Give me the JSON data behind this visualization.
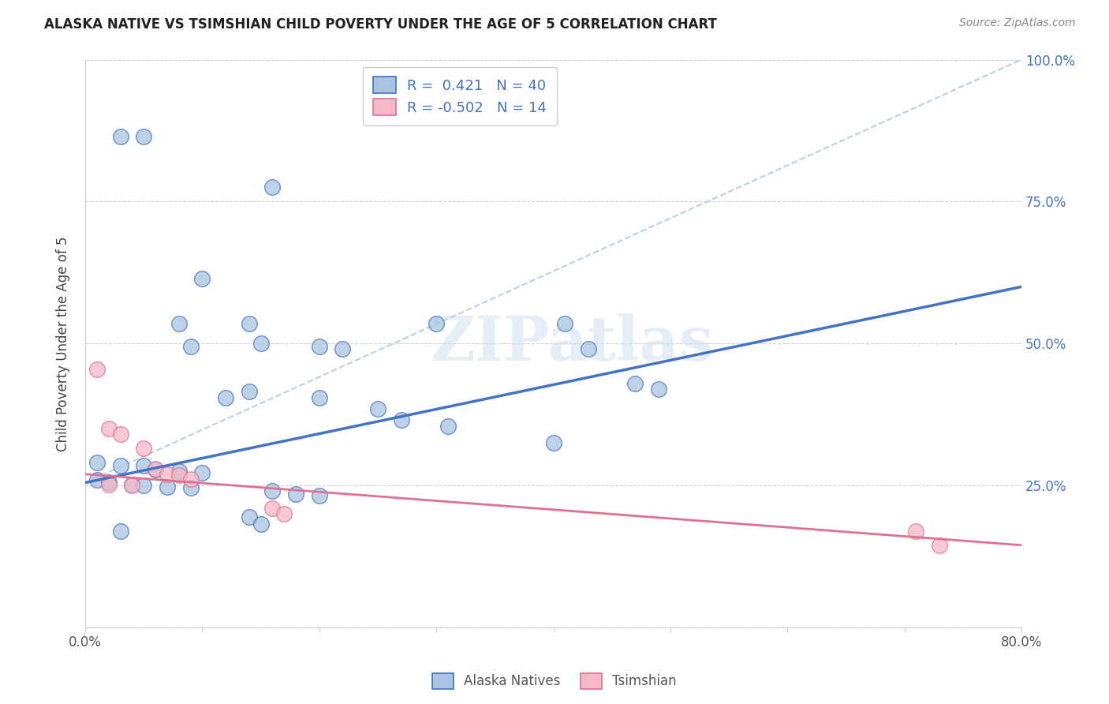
{
  "title": "ALASKA NATIVE VS TSIMSHIAN CHILD POVERTY UNDER THE AGE OF 5 CORRELATION CHART",
  "source": "Source: ZipAtlas.com",
  "ylabel": "Child Poverty Under the Age of 5",
  "xlim": [
    0.0,
    0.8
  ],
  "ylim": [
    0.0,
    1.0
  ],
  "ytick_positions": [
    0.0,
    0.25,
    0.5,
    0.75,
    1.0
  ],
  "yticklabels_right": [
    "",
    "25.0%",
    "50.0%",
    "75.0%",
    "100.0%"
  ],
  "alaska_R": 0.421,
  "alaska_N": 40,
  "tsimshian_R": -0.502,
  "tsimshian_N": 14,
  "alaska_color": "#a8c4e0",
  "alaska_line_color": "#4472c4",
  "tsimshian_color": "#f4b8c8",
  "tsimshian_line_color": "#e07090",
  "diagonal_color": "#b8d0e8",
  "alaska_scatter": [
    [
      0.03,
      0.865
    ],
    [
      0.05,
      0.865
    ],
    [
      0.16,
      0.775
    ],
    [
      0.1,
      0.615
    ],
    [
      0.08,
      0.535
    ],
    [
      0.14,
      0.535
    ],
    [
      0.09,
      0.495
    ],
    [
      0.15,
      0.5
    ],
    [
      0.2,
      0.495
    ],
    [
      0.22,
      0.49
    ],
    [
      0.3,
      0.535
    ],
    [
      0.41,
      0.535
    ],
    [
      0.43,
      0.49
    ],
    [
      0.47,
      0.43
    ],
    [
      0.49,
      0.42
    ],
    [
      0.12,
      0.405
    ],
    [
      0.14,
      0.415
    ],
    [
      0.2,
      0.405
    ],
    [
      0.25,
      0.385
    ],
    [
      0.27,
      0.365
    ],
    [
      0.31,
      0.355
    ],
    [
      0.4,
      0.325
    ],
    [
      0.01,
      0.29
    ],
    [
      0.03,
      0.285
    ],
    [
      0.05,
      0.285
    ],
    [
      0.06,
      0.278
    ],
    [
      0.08,
      0.275
    ],
    [
      0.1,
      0.273
    ],
    [
      0.01,
      0.26
    ],
    [
      0.02,
      0.256
    ],
    [
      0.04,
      0.252
    ],
    [
      0.05,
      0.25
    ],
    [
      0.07,
      0.248
    ],
    [
      0.09,
      0.246
    ],
    [
      0.16,
      0.24
    ],
    [
      0.18,
      0.235
    ],
    [
      0.2,
      0.232
    ],
    [
      0.14,
      0.195
    ],
    [
      0.15,
      0.182
    ],
    [
      0.03,
      0.17
    ]
  ],
  "tsimshian_scatter": [
    [
      0.01,
      0.455
    ],
    [
      0.02,
      0.35
    ],
    [
      0.03,
      0.34
    ],
    [
      0.05,
      0.315
    ],
    [
      0.06,
      0.28
    ],
    [
      0.07,
      0.27
    ],
    [
      0.08,
      0.268
    ],
    [
      0.09,
      0.262
    ],
    [
      0.02,
      0.252
    ],
    [
      0.04,
      0.25
    ],
    [
      0.16,
      0.21
    ],
    [
      0.17,
      0.2
    ],
    [
      0.71,
      0.17
    ],
    [
      0.73,
      0.145
    ]
  ],
  "watermark": "ZIPatlas",
  "alaska_line": [
    0.0,
    0.255,
    0.8,
    0.6
  ],
  "tsimshian_line": [
    0.0,
    0.27,
    0.8,
    0.145
  ],
  "diagonal_line": [
    0.0,
    0.255,
    0.8,
    1.0
  ]
}
